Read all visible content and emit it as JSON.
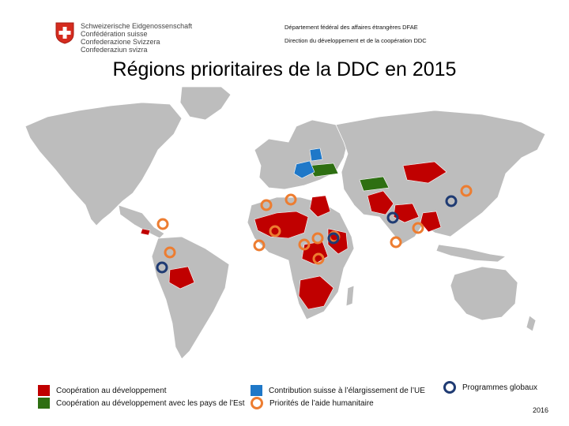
{
  "header": {
    "logo_lines": [
      "Schweizerische Eidgenossenschaft",
      "Confédération suisse",
      "Confederazione Svizzera",
      "Confederaziun svizra"
    ],
    "department": "Département fédéral des affaires étrangères DFAE",
    "directorate": "Direction du développement et de la coopération DDC"
  },
  "title": "Régions prioritaires de la DDC en 2015",
  "legend": {
    "development": {
      "label": "Coopération au développement",
      "color": "#c00000"
    },
    "east": {
      "label": "Coopération au développement avec les pays de l’Est",
      "color": "#2e6f12"
    },
    "eu": {
      "label": "Contribution suisse à l’élargissement de l’UE",
      "color": "#1f78c8"
    },
    "humanitarian": {
      "label": "Priorités de l’aide humanitaire",
      "color": "#ed7d31"
    },
    "global": {
      "label": "Programmes globaux",
      "color": "#1f3b73"
    }
  },
  "year": "2016"
}
